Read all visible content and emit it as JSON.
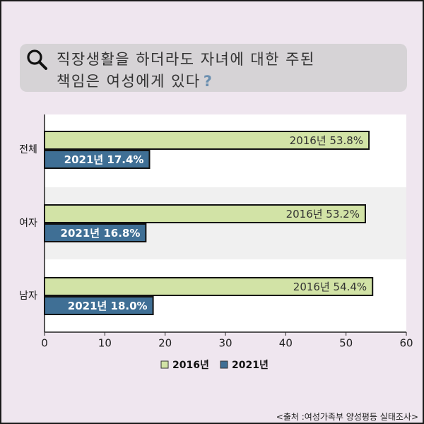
{
  "search": {
    "line1": "직장생활을 하더라도 자녀에 대한 주된",
    "line2": "책임은 여성에게 있다",
    "question_mark": "?",
    "icon": "search-icon"
  },
  "source_note": "<출처 :여성가족부 양성평등 실태조사>",
  "colors": {
    "background": "#efe6ef",
    "plot_area": "#ffffff",
    "series_2016": "#d2e3a6",
    "series_2021": "#3f6f95",
    "search_bar": "#d6d3d6"
  },
  "chart_data": {
    "type": "bar",
    "orientation": "horizontal",
    "categories": [
      "전체",
      "여자",
      "남자"
    ],
    "series": [
      {
        "name": "2016년",
        "values": [
          53.8,
          53.2,
          54.4
        ],
        "labels": [
          "2016년 53.8%",
          "2016년 53.2%",
          "2016년 54.4%"
        ]
      },
      {
        "name": "2021년",
        "values": [
          17.4,
          16.8,
          18.0
        ],
        "labels": [
          "2021년 17.4%",
          "2021년 16.8%",
          "2021년 18.0%"
        ]
      }
    ],
    "xlim": [
      0,
      60
    ],
    "xticks": [
      "0",
      "10",
      "20",
      "30",
      "40",
      "50",
      "60"
    ],
    "legend_position": "bottom",
    "grid": false
  }
}
